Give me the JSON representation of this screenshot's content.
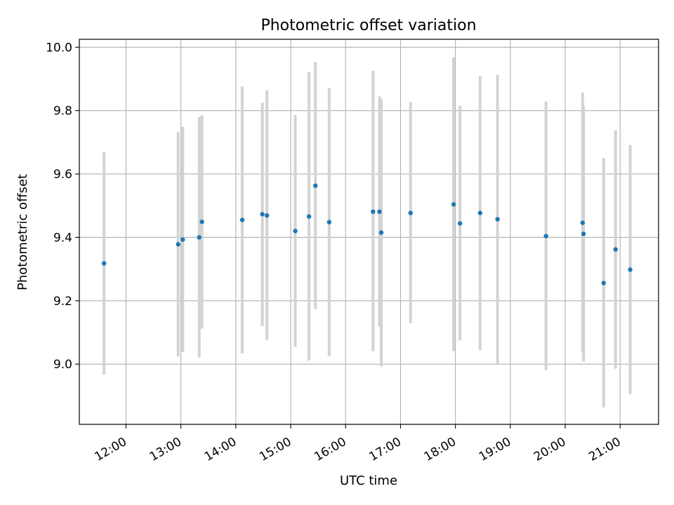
{
  "chart_data": {
    "type": "scatter",
    "title": "Photometric offset variation",
    "xlabel": "UTC time",
    "ylabel": "Photometric offset",
    "x_unit": "hours UTC",
    "xlim": [
      11.15,
      21.7
    ],
    "ylim": [
      8.81,
      10.025
    ],
    "x_ticks": [
      12,
      13,
      14,
      15,
      16,
      17,
      18,
      19,
      20,
      21
    ],
    "x_tick_labels": [
      "12:00",
      "13:00",
      "14:00",
      "15:00",
      "16:00",
      "17:00",
      "18:00",
      "19:00",
      "20:00",
      "21:00"
    ],
    "y_ticks": [
      9.0,
      9.2,
      9.4,
      9.6,
      9.8,
      10.0
    ],
    "y_tick_labels": [
      "9.0",
      "9.2",
      "9.4",
      "9.6",
      "9.8",
      "10.0"
    ],
    "grid": true,
    "colors": {
      "point": "#1f77b4",
      "errorbar": "#d3d3d3",
      "grid": "#b0b0b0",
      "axes": "#000000"
    },
    "points": [
      {
        "time": "11:36",
        "y": 9.318,
        "lo": 8.967,
        "hi": 9.669
      },
      {
        "time": "12:57",
        "y": 9.378,
        "lo": 9.024,
        "hi": 9.732
      },
      {
        "time": "13:02",
        "y": 9.393,
        "lo": 9.038,
        "hi": 9.749
      },
      {
        "time": "13:20",
        "y": 9.4,
        "lo": 9.02,
        "hi": 9.78
      },
      {
        "time": "13:23",
        "y": 9.449,
        "lo": 9.112,
        "hi": 9.785
      },
      {
        "time": "14:07",
        "y": 9.455,
        "lo": 9.034,
        "hi": 9.876
      },
      {
        "time": "14:29",
        "y": 9.473,
        "lo": 9.121,
        "hi": 9.825
      },
      {
        "time": "14:34",
        "y": 9.469,
        "lo": 9.075,
        "hi": 9.864
      },
      {
        "time": "15:05",
        "y": 9.42,
        "lo": 9.054,
        "hi": 9.786
      },
      {
        "time": "15:20",
        "y": 9.466,
        "lo": 9.011,
        "hi": 9.922
      },
      {
        "time": "15:27",
        "y": 9.563,
        "lo": 9.174,
        "hi": 9.953
      },
      {
        "time": "15:42",
        "y": 9.448,
        "lo": 9.025,
        "hi": 9.871
      },
      {
        "time": "16:30",
        "y": 9.481,
        "lo": 9.041,
        "hi": 9.926
      },
      {
        "time": "16:37",
        "y": 9.481,
        "lo": 9.118,
        "hi": 9.845
      },
      {
        "time": "16:39",
        "y": 9.415,
        "lo": 8.993,
        "hi": 9.837
      },
      {
        "time": "17:11",
        "y": 9.477,
        "lo": 9.129,
        "hi": 9.827
      },
      {
        "time": "17:58",
        "y": 9.504,
        "lo": 9.041,
        "hi": 9.968
      },
      {
        "time": "18:05",
        "y": 9.444,
        "lo": 9.075,
        "hi": 9.815
      },
      {
        "time": "18:27",
        "y": 9.477,
        "lo": 9.044,
        "hi": 9.91
      },
      {
        "time": "18:46",
        "y": 9.457,
        "lo": 9.001,
        "hi": 9.913
      },
      {
        "time": "19:39",
        "y": 9.404,
        "lo": 8.981,
        "hi": 9.829
      },
      {
        "time": "20:19",
        "y": 9.446,
        "lo": 9.038,
        "hi": 9.857
      },
      {
        "time": "20:20",
        "y": 9.411,
        "lo": 9.008,
        "hi": 9.813
      },
      {
        "time": "20:42",
        "y": 9.256,
        "lo": 8.863,
        "hi": 9.65
      },
      {
        "time": "20:55",
        "y": 9.362,
        "lo": 8.986,
        "hi": 9.738
      },
      {
        "time": "21:11",
        "y": 9.298,
        "lo": 8.905,
        "hi": 9.691
      }
    ]
  }
}
